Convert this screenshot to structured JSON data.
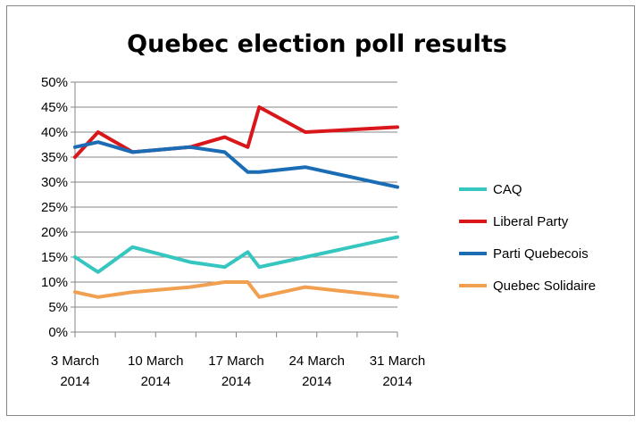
{
  "chart_data": {
    "type": "line",
    "title": "Quebec election poll results",
    "xlabel": "",
    "ylabel": "",
    "ylim": [
      0,
      50
    ],
    "y_ticks": [
      "0%",
      "5%",
      "10%",
      "15%",
      "20%",
      "25%",
      "30%",
      "35%",
      "40%",
      "45%",
      "50%"
    ],
    "x_ticks": [
      {
        "day": 0,
        "line1": "3 March",
        "line2": "2014"
      },
      {
        "day": 7,
        "line1": "10 March",
        "line2": "2014"
      },
      {
        "day": 14,
        "line1": "17 March",
        "line2": "2014"
      },
      {
        "day": 21,
        "line1": "24 March",
        "line2": "2014"
      },
      {
        "day": 28,
        "line1": "31 March",
        "line2": "2014"
      }
    ],
    "x_range_days": [
      0,
      28
    ],
    "grid": "horizontal",
    "legend_position": "right",
    "series": [
      {
        "name": "CAQ",
        "color": "#35C6C0",
        "x": [
          0,
          2,
          5,
          10,
          13,
          15,
          16,
          20,
          28
        ],
        "values": [
          15,
          12,
          17,
          14,
          13,
          16,
          13,
          15,
          19
        ]
      },
      {
        "name": "Liberal Party",
        "color": "#D9161A",
        "x": [
          0,
          2,
          5,
          10,
          13,
          15,
          16,
          20,
          28
        ],
        "values": [
          35,
          40,
          36,
          37,
          39,
          37,
          45,
          40,
          41
        ]
      },
      {
        "name": "Parti Quebecois",
        "color": "#1A6DB5",
        "x": [
          0,
          2,
          5,
          10,
          13,
          15,
          16,
          20,
          28
        ],
        "values": [
          37,
          38,
          36,
          37,
          36,
          32,
          32,
          33,
          29
        ]
      },
      {
        "name": "Quebec Solidaire",
        "color": "#F0A050",
        "x": [
          0,
          2,
          5,
          10,
          13,
          15,
          16,
          20,
          28
        ],
        "values": [
          8,
          7,
          8,
          9,
          10,
          10,
          7,
          9,
          7
        ]
      }
    ]
  }
}
